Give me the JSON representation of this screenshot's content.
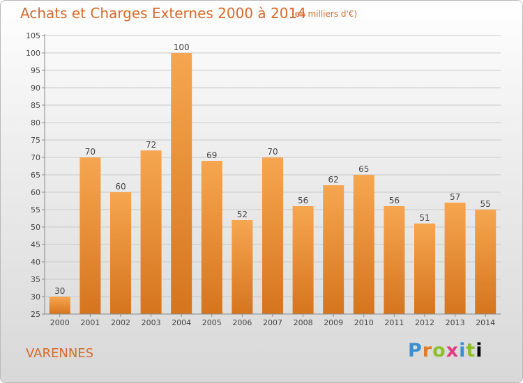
{
  "header": {
    "title": "Achats et Charges Externes 2000 à 2014",
    "subtitle": "(en milliers d'€)"
  },
  "footer": {
    "region": "VARENNES",
    "logo_letters": [
      "P",
      "r",
      "o",
      "x",
      "i",
      "t",
      "i"
    ]
  },
  "colors": {
    "bar_top": "#f6a650",
    "bar_bottom": "#d5751e",
    "title": "#d76a2a",
    "grid": "#c9c9c9"
  },
  "chart_data": {
    "type": "bar",
    "title": "Achats et Charges Externes 2000 à 2014",
    "subtitle": "(en milliers d'€)",
    "categories": [
      "2000",
      "2001",
      "2002",
      "2003",
      "2004",
      "2005",
      "2006",
      "2007",
      "2008",
      "2009",
      "2010",
      "2011",
      "2012",
      "2013",
      "2014"
    ],
    "values": [
      30,
      70,
      60,
      72,
      100,
      69,
      52,
      70,
      56,
      62,
      65,
      56,
      51,
      57,
      55
    ],
    "ylim": [
      25,
      105
    ],
    "yticks": [
      25,
      30,
      35,
      40,
      45,
      50,
      55,
      60,
      65,
      70,
      75,
      80,
      85,
      90,
      95,
      100,
      105
    ],
    "grid": true
  }
}
